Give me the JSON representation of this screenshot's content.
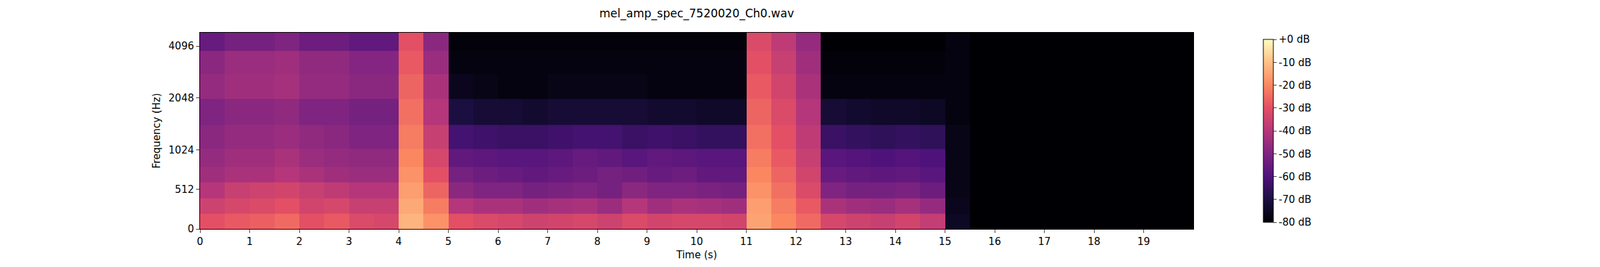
{
  "chart_data": {
    "type": "heatmap",
    "title": "mel_amp_spec_7520020_Ch0.wav",
    "x_label": "Time (s)",
    "y_label": "Frequency (Hz)",
    "x": [
      0.25,
      0.75,
      1.25,
      1.75,
      2.25,
      2.75,
      3.25,
      3.75,
      4.25,
      4.75,
      5.25,
      5.75,
      6.25,
      6.75,
      7.25,
      7.75,
      8.25,
      8.75,
      9.25,
      9.75,
      10.25,
      10.75,
      11.25,
      11.75,
      12.25,
      12.75,
      13.25,
      13.75,
      14.25,
      14.75,
      15.25,
      15.75,
      16.25,
      16.75,
      17.25,
      17.75,
      18.25,
      18.75,
      19.25,
      19.75
    ],
    "y": [
      100,
      300,
      500,
      700,
      900,
      1200,
      1700,
      2400,
      3300,
      4500
    ],
    "xlim": [
      0,
      20
    ],
    "xticks": [
      0,
      1,
      2,
      3,
      4,
      5,
      6,
      7,
      8,
      9,
      10,
      11,
      12,
      13,
      14,
      15,
      16,
      17,
      18,
      19
    ],
    "ylim": [
      0,
      4900
    ],
    "yticks": [
      0,
      512,
      1024,
      2048,
      4096
    ],
    "cells": [
      [
        -30,
        -28,
        -27,
        -25,
        -30,
        -28,
        -32,
        -33,
        -12,
        -18,
        -30,
        -32,
        -33,
        -35,
        -34,
        -33,
        -35,
        -32,
        -34,
        -33,
        -33,
        -34,
        -15,
        -20,
        -25,
        -33,
        -35,
        -36,
        -34,
        -37,
        -75,
        -80,
        -80,
        -80,
        -80,
        -80,
        -80,
        -80,
        -80,
        -80
      ],
      [
        -35,
        -33,
        -32,
        -30,
        -34,
        -33,
        -36,
        -36,
        -14,
        -22,
        -40,
        -42,
        -42,
        -44,
        -43,
        -42,
        -45,
        -40,
        -44,
        -42,
        -43,
        -44,
        -16,
        -22,
        -28,
        -42,
        -44,
        -45,
        -43,
        -46,
        -76,
        -80,
        -80,
        -80,
        -80,
        -80,
        -80,
        -80,
        -80,
        -80
      ],
      [
        -40,
        -36,
        -35,
        -34,
        -36,
        -38,
        -40,
        -40,
        -16,
        -26,
        -48,
        -50,
        -50,
        -52,
        -51,
        -50,
        -52,
        -48,
        -50,
        -50,
        -51,
        -52,
        -18,
        -24,
        -32,
        -50,
        -52,
        -52,
        -51,
        -54,
        -77,
        -80,
        -80,
        -80,
        -80,
        -80,
        -80,
        -80,
        -80,
        -80
      ],
      [
        -44,
        -42,
        -42,
        -40,
        -42,
        -44,
        -45,
        -45,
        -18,
        -30,
        -52,
        -54,
        -55,
        -56,
        -55,
        -54,
        -52,
        -53,
        -55,
        -54,
        -56,
        -56,
        -20,
        -26,
        -34,
        -55,
        -56,
        -57,
        -56,
        -58,
        -77,
        -80,
        -80,
        -80,
        -80,
        -80,
        -80,
        -80,
        -80,
        -80
      ],
      [
        -46,
        -44,
        -44,
        -42,
        -45,
        -46,
        -47,
        -47,
        -20,
        -33,
        -56,
        -57,
        -58,
        -58,
        -57,
        -55,
        -56,
        -58,
        -56,
        -57,
        -58,
        -58,
        -22,
        -28,
        -36,
        -58,
        -59,
        -60,
        -59,
        -60,
        -77,
        -80,
        -80,
        -80,
        -80,
        -80,
        -80,
        -80,
        -80,
        -80
      ],
      [
        -48,
        -46,
        -46,
        -45,
        -47,
        -48,
        -50,
        -50,
        -22,
        -36,
        -62,
        -63,
        -64,
        -64,
        -63,
        -62,
        -62,
        -64,
        -63,
        -64,
        -65,
        -65,
        -24,
        -30,
        -38,
        -64,
        -65,
        -66,
        -65,
        -66,
        -77,
        -80,
        -80,
        -80,
        -80,
        -80,
        -80,
        -80,
        -80,
        -80
      ],
      [
        -50,
        -48,
        -48,
        -47,
        -50,
        -50,
        -52,
        -52,
        -24,
        -40,
        -70,
        -72,
        -72,
        -73,
        -72,
        -72,
        -72,
        -72,
        -73,
        -73,
        -74,
        -74,
        -26,
        -32,
        -40,
        -72,
        -73,
        -74,
        -74,
        -75,
        -78,
        -80,
        -80,
        -80,
        -80,
        -80,
        -80,
        -80,
        -80,
        -80
      ],
      [
        -46,
        -44,
        -44,
        -43,
        -46,
        -46,
        -48,
        -48,
        -26,
        -42,
        -76,
        -77,
        -78,
        -78,
        -77,
        -77,
        -77,
        -77,
        -78,
        -78,
        -78,
        -78,
        -28,
        -34,
        -42,
        -78,
        -78,
        -78,
        -78,
        -78,
        -78,
        -80,
        -80,
        -80,
        -80,
        -80,
        -80,
        -80,
        -80,
        -80
      ],
      [
        -48,
        -45,
        -45,
        -44,
        -47,
        -47,
        -49,
        -49,
        -28,
        -45,
        -78,
        -78,
        -78,
        -78,
        -78,
        -78,
        -78,
        -78,
        -78,
        -78,
        -78,
        -78,
        -30,
        -36,
        -44,
        -79,
        -79,
        -79,
        -79,
        -79,
        -78,
        -80,
        -80,
        -80,
        -80,
        -80,
        -80,
        -80,
        -80,
        -80
      ],
      [
        -55,
        -52,
        -52,
        -50,
        -54,
        -54,
        -56,
        -56,
        -30,
        -48,
        -79,
        -79,
        -79,
        -79,
        -79,
        -79,
        -79,
        -79,
        -79,
        -79,
        -79,
        -79,
        -32,
        -38,
        -46,
        -80,
        -80,
        -80,
        -80,
        -80,
        -78,
        -80,
        -80,
        -80,
        -80,
        -80,
        -80,
        -80,
        -80,
        -80
      ]
    ],
    "color_range": [
      -80,
      0
    ],
    "color_ticks": [
      {
        "value": 0,
        "label": "+0 dB"
      },
      {
        "value": -10,
        "label": "-10 dB"
      },
      {
        "value": -20,
        "label": "-20 dB"
      },
      {
        "value": -30,
        "label": "-30 dB"
      },
      {
        "value": -40,
        "label": "-40 dB"
      },
      {
        "value": -50,
        "label": "-50 dB"
      },
      {
        "value": -60,
        "label": "-60 dB"
      },
      {
        "value": -70,
        "label": "-70 dB"
      },
      {
        "value": -80,
        "label": "-80 dB"
      }
    ]
  }
}
